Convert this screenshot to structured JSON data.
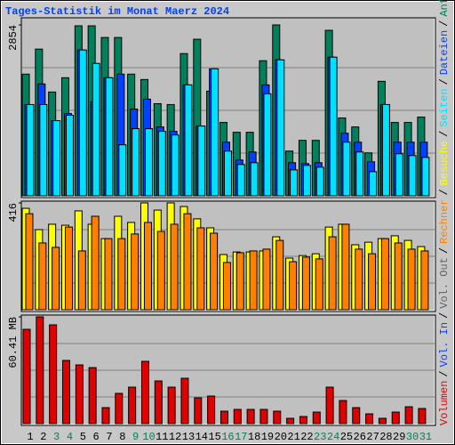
{
  "title": "Tages-Statistik im Monat Maerz 2024",
  "legend_separator": "/",
  "legend": [
    {
      "label": "Volumen",
      "color": "#e00000"
    },
    {
      "label": "Vol. In",
      "color": "#0040ff"
    },
    {
      "label": "Vol. Out",
      "color": "#606060"
    },
    {
      "label": "Rechner",
      "color": "#ff8000"
    },
    {
      "label": "Besuche",
      "color": "#ffff00"
    },
    {
      "label": "Seiten",
      "color": "#00e0ff"
    },
    {
      "label": "Dateien",
      "color": "#0040ff"
    },
    {
      "label": "Anfragen",
      "color": "#00805c"
    }
  ],
  "chart_data": [
    {
      "type": "bar",
      "ylim": [
        0,
        2854
      ],
      "yticks": [
        2854
      ],
      "series": [
        {
          "color": "#00805c",
          "values": [
            2032,
            2450,
            1733,
            1972,
            2839,
            2839,
            2644,
            2644,
            2032,
            1942,
            1539,
            1524,
            2375,
            2615,
            1748,
            1225,
            1061,
            1061,
            2256,
            2854,
            747,
            926,
            926,
            2764,
            1300,
            1150,
            717,
            1912,
            1225,
            1225,
            1315
          ]
        },
        {
          "color": "#0040ff",
          "values": [
            1524,
            1868,
            1255,
            1374,
            2435,
            1569,
            1972,
            2032,
            1449,
            1614,
            1150,
            1076,
            1853,
            1165,
            2121,
            896,
            598,
            732,
            1853,
            2271,
            553,
            538,
            553,
            2316,
            1046,
            896,
            568,
            1524,
            896,
            896,
            896
          ]
        },
        {
          "color": "#00e0ff",
          "values": [
            1524,
            1524,
            1255,
            1345,
            2435,
            2211,
            1972,
            852,
            1121,
            1121,
            1076,
            1016,
            1853,
            1165,
            2121,
            747,
            523,
            553,
            1703,
            2271,
            433,
            508,
            478,
            2316,
            896,
            732,
            403,
            1524,
            702,
            672,
            642
          ]
        }
      ]
    },
    {
      "type": "bar",
      "ylim": [
        0,
        416
      ],
      "yticks": [
        416
      ],
      "series": [
        {
          "color": "#ffff00",
          "values": [
            395,
            312,
            333,
            329,
            385,
            333,
            277,
            364,
            340,
            416,
            388,
            416,
            402,
            354,
            319,
            215,
            225,
            225,
            229,
            284,
            201,
            211,
            218,
            322,
            333,
            253,
            263,
            277,
            288,
            270,
            246
          ]
        },
        {
          "color": "#ff8000",
          "values": [
            374,
            260,
            243,
            322,
            229,
            364,
            277,
            277,
            295,
            340,
            305,
            333,
            374,
            319,
            298,
            184,
            222,
            229,
            236,
            270,
            187,
            205,
            198,
            284,
            333,
            236,
            218,
            277,
            260,
            236,
            229
          ]
        }
      ]
    },
    {
      "type": "bar",
      "ylim": [
        0,
        60.41
      ],
      "yticks": [
        {
          "value": 60.41,
          "label": "60.41 MB"
        }
      ],
      "categories": [
        "1",
        "2",
        "3",
        "4",
        "5",
        "6",
        "7",
        "8",
        "9",
        "10",
        "11",
        "12",
        "13",
        "14",
        "15",
        "16",
        "17",
        "18",
        "19",
        "20",
        "21",
        "22",
        "23",
        "24",
        "25",
        "26",
        "27",
        "28",
        "29",
        "30",
        "31"
      ],
      "category_colors": [
        "#000000",
        "#000000",
        "#00805c",
        "#00805c",
        "#000000",
        "#000000",
        "#000000",
        "#000000",
        "#00805c",
        "#00805c",
        "#000000",
        "#000000",
        "#000000",
        "#000000",
        "#000000",
        "#00805c",
        "#00805c",
        "#000000",
        "#000000",
        "#000000",
        "#000000",
        "#000000",
        "#00805c",
        "#00805c",
        "#000000",
        "#000000",
        "#000000",
        "#000000",
        "#000000",
        "#00805c",
        "#00805c"
      ],
      "series": [
        {
          "color": "#e00000",
          "values": [
            53.36,
            60.41,
            55.88,
            35.74,
            33.22,
            31.71,
            9.06,
            17.12,
            20.64,
            35.24,
            24.16,
            20.64,
            25.67,
            14.6,
            15.61,
            7.05,
            8.05,
            8.05,
            8.05,
            7.05,
            3.02,
            4.03,
            6.54,
            20.64,
            13.09,
            9.06,
            5.54,
            3.02,
            6.54,
            9.56,
            8.56
          ]
        }
      ]
    }
  ]
}
